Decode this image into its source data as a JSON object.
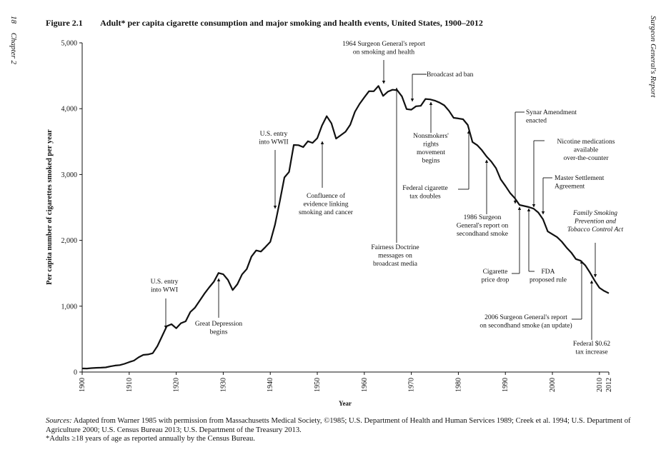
{
  "page": {
    "page_number": "18",
    "chapter_label": "Chapter 2",
    "running_head": "Surgeon General's Report"
  },
  "figure": {
    "number": "Figure 2.1",
    "caption": "Adult* per capita cigarette consumption and major smoking and health events, United States, 1900–2012",
    "sources_label": "Sources:",
    "sources_text": "Adapted from Warner 1985 with permission from Massachusetts Medical Society, ©1985; U.S. Department of Health and Human Services 1989; Creek et al. 1994; U.S. Department of Agriculture 2000; U.S. Census Bureau 2013; U.S. Department of the Treasury 2013.",
    "footnote": "*Adults ≥18 years of age as reported annually by the Census Bureau."
  },
  "chart_data": {
    "type": "line",
    "title": "",
    "xlabel": "Year",
    "ylabel": "Per capita number of cigarettes smoked per year",
    "xlim": [
      1900,
      2012
    ],
    "ylim": [
      0,
      5000
    ],
    "x_ticks": [
      "1900",
      "1910",
      "1920",
      "1930",
      "1940",
      "1950",
      "1960",
      "1970",
      "1980",
      "1990",
      "2000",
      "2010",
      "2012"
    ],
    "x_tick_values": [
      1900,
      1910,
      1920,
      1930,
      1940,
      1950,
      1960,
      1970,
      1980,
      1990,
      2000,
      2010,
      2012
    ],
    "y_ticks": [
      "0",
      "1,000",
      "2,000",
      "3,000",
      "4,000",
      "5,000"
    ],
    "y_tick_values": [
      0,
      1000,
      2000,
      3000,
      4000,
      5000
    ],
    "grid": false,
    "series": [
      {
        "color": "#111111",
        "x": [
          1900,
          1901,
          1902,
          1903,
          1904,
          1905,
          1906,
          1907,
          1908,
          1909,
          1910,
          1911,
          1912,
          1913,
          1914,
          1915,
          1916,
          1917,
          1918,
          1919,
          1920,
          1921,
          1922,
          1923,
          1924,
          1925,
          1926,
          1927,
          1928,
          1929,
          1930,
          1931,
          1932,
          1933,
          1934,
          1935,
          1936,
          1937,
          1938,
          1939,
          1940,
          1941,
          1942,
          1943,
          1944,
          1945,
          1946,
          1947,
          1948,
          1949,
          1950,
          1951,
          1952,
          1953,
          1954,
          1955,
          1956,
          1957,
          1958,
          1959,
          1960,
          1961,
          1962,
          1963,
          1964,
          1965,
          1966,
          1967,
          1968,
          1969,
          1970,
          1971,
          1972,
          1973,
          1974,
          1975,
          1976,
          1977,
          1978,
          1979,
          1980,
          1981,
          1982,
          1983,
          1984,
          1985,
          1986,
          1987,
          1988,
          1989,
          1990,
          1991,
          1992,
          1993,
          1994,
          1995,
          1996,
          1997,
          1998,
          1999,
          2000,
          2001,
          2002,
          2003,
          2004,
          2005,
          2006,
          2007,
          2008,
          2009,
          2010,
          2011,
          2012
        ],
        "y": [
          54,
          53,
          60,
          64,
          66,
          70,
          86,
          99,
          105,
          125,
          151,
          173,
          223,
          260,
          267,
          285,
          395,
          547,
          696,
          727,
          665,
          742,
          770,
          911,
          978,
          1085,
          1191,
          1285,
          1372,
          1504,
          1485,
          1399,
          1245,
          1334,
          1483,
          1564,
          1754,
          1847,
          1830,
          1900,
          1976,
          2236,
          2585,
          2956,
          3039,
          3449,
          3446,
          3416,
          3505,
          3480,
          3552,
          3744,
          3886,
          3778,
          3546,
          3597,
          3650,
          3755,
          3953,
          4073,
          4171,
          4266,
          4265,
          4345,
          4194,
          4258,
          4287,
          4280,
          4186,
          3993,
          3985,
          4037,
          4043,
          4148,
          4141,
          4123,
          4092,
          4051,
          3967,
          3861,
          3851,
          3840,
          3753,
          3494,
          3446,
          3370,
          3274,
          3197,
          3096,
          2926,
          2828,
          2720,
          2641,
          2538,
          2522,
          2505,
          2482,
          2423,
          2320,
          2136,
          2092,
          2049,
          1979,
          1890,
          1814,
          1716,
          1691,
          1619,
          1509,
          1386,
          1280,
          1232,
          1196
        ]
      }
    ],
    "annotations": [
      {
        "text": "1964 Surgeon General's report\non smoking and health",
        "year": 1964
      },
      {
        "text": "Broadcast ad ban",
        "year": 1971
      },
      {
        "text": "Nonsmokers'\nrights\nmovement\nbegins",
        "year": 1974
      },
      {
        "text": "Federal cigarette\ntax doubles",
        "year": 1983
      },
      {
        "text": "1986 Surgeon\nGeneral's report on\nsecondhand smoke",
        "year": 1986
      },
      {
        "text": "Synar Amendment\nenacted",
        "year": 1992
      },
      {
        "text": "Nicotine medications\navailable\nover-the-counter",
        "year": 1996
      },
      {
        "text": "Master Settlement\nAgreement",
        "year": 1998
      },
      {
        "text": "Family Smoking\nPrevention and\nTobacco Control Act",
        "year": 2009
      },
      {
        "text": "Cigarette\nprice drop",
        "year": 1993
      },
      {
        "text": "FDA\nproposed rule",
        "year": 1995
      },
      {
        "text": "2006 Surgeon General's report\non secondhand smoke (an update)",
        "year": 2006
      },
      {
        "text": "Federal $0.62\ntax increase",
        "year": 2009
      },
      {
        "text": "Fairness Doctrine\nmessages on\nbroadcast media",
        "year": 1967
      },
      {
        "text": "Confluence of\nevidence linking\nsmoking and cancer",
        "year": 1951
      },
      {
        "text": "U.S. entry\ninto WWII",
        "year": 1941
      },
      {
        "text": "U.S. entry\ninto WWI",
        "year": 1917
      },
      {
        "text": "Great Depression\nbegins",
        "year": 1929
      }
    ]
  }
}
